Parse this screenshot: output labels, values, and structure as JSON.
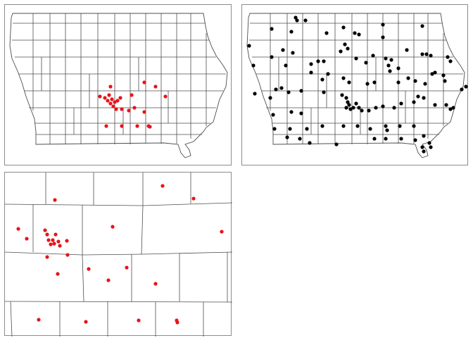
{
  "figure": {
    "panels": [
      {
        "id": "iowa-subset",
        "point_color": "#e8141a",
        "marker": "dot"
      },
      {
        "id": "iowa-all",
        "point_color": "#000000",
        "marker": "dot"
      },
      {
        "id": "zoom-subset",
        "point_color": "#e8141a",
        "marker": "dot"
      }
    ],
    "county_line_color": "#4d4d4d",
    "frame_color": "#8c8c8c"
  }
}
